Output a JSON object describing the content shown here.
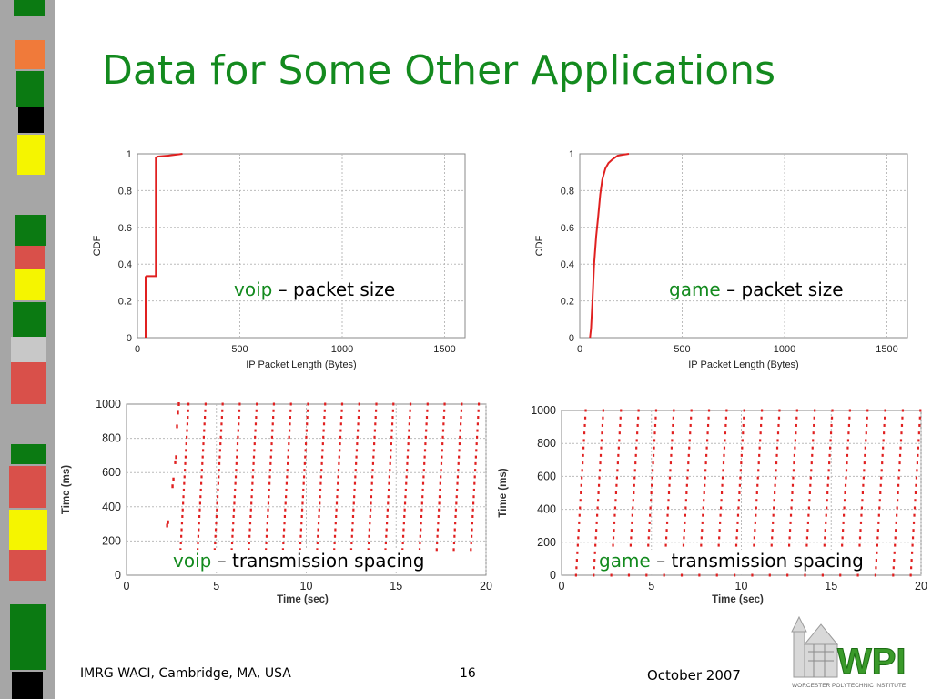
{
  "slide": {
    "title": "Data for Some Other Applications",
    "footer_left": "IMRG WACI, Cambridge, MA, USA",
    "page_number": "16",
    "footer_right": "October 2007",
    "logo_text": "WPI",
    "logo_subtext": "WORCESTER POLYTECHNIC INSTITUTE"
  },
  "captions": [
    {
      "app": "voip",
      "rest": " – packet size"
    },
    {
      "app": "game",
      "rest": " – packet size"
    },
    {
      "app": "voip",
      "rest": " – transmission spacing"
    },
    {
      "app": "game",
      "rest": " – transmission spacing"
    }
  ],
  "colors": {
    "accent": "#138a1e",
    "series": "#e02020"
  },
  "chart_data": [
    {
      "type": "line",
      "xlabel": "IP Packet Length (Bytes)",
      "ylabel": "CDF",
      "xlim": [
        0,
        1600
      ],
      "ylim": [
        0,
        1
      ],
      "xticks": [
        0,
        500,
        1000,
        1500
      ],
      "yticks": [
        0,
        0.2,
        0.4,
        0.6,
        0.8,
        1
      ],
      "grid": true,
      "series": [
        {
          "x": [
            40,
            40,
            44,
            90,
            90,
            100,
            150,
            220
          ],
          "y": [
            0,
            0.33,
            0.335,
            0.335,
            0.98,
            0.985,
            0.99,
            1.0
          ]
        }
      ]
    },
    {
      "type": "line",
      "xlabel": "IP Packet Length (Bytes)",
      "ylabel": "CDF",
      "xlim": [
        0,
        1600
      ],
      "ylim": [
        0,
        1
      ],
      "xticks": [
        0,
        500,
        1000,
        1500
      ],
      "yticks": [
        0,
        0.2,
        0.4,
        0.6,
        0.8,
        1
      ],
      "grid": true,
      "series": [
        {
          "x": [
            50,
            55,
            62,
            70,
            80,
            90,
            100,
            110,
            125,
            140,
            160,
            185,
            210,
            240
          ],
          "y": [
            0,
            0.05,
            0.2,
            0.4,
            0.55,
            0.66,
            0.78,
            0.86,
            0.92,
            0.95,
            0.97,
            0.99,
            0.995,
            1.0
          ]
        }
      ]
    },
    {
      "type": "scatter",
      "xlabel": "Time (sec)",
      "ylabel": "Time (ms)",
      "xlim": [
        0,
        20
      ],
      "ylim": [
        0,
        1000
      ],
      "xticks": [
        0,
        5,
        10,
        15,
        20
      ],
      "yticks": [
        0,
        200,
        400,
        600,
        800,
        1000
      ],
      "grid": true,
      "period_sec": 0.95,
      "sweep_starts_sec": [
        3.0,
        3.95,
        4.9,
        5.85,
        6.8,
        7.75,
        8.7,
        9.65,
        10.6,
        11.55,
        12.5,
        13.45,
        14.4,
        15.35,
        16.3,
        17.25,
        18.2,
        19.15
      ],
      "sweeps_ms": [
        150,
        1000
      ],
      "extra_points": [
        [
          2.25,
          290
        ],
        [
          2.3,
          310
        ],
        [
          2.55,
          520
        ],
        [
          2.6,
          560
        ],
        [
          2.7,
          660
        ],
        [
          2.75,
          690
        ],
        [
          2.8,
          870
        ],
        [
          2.85,
          950
        ],
        [
          2.9,
          1000
        ]
      ]
    },
    {
      "type": "scatter",
      "xlabel": "Time (sec)",
      "ylabel": "Time (ms)",
      "xlim": [
        0,
        20
      ],
      "ylim": [
        0,
        1000
      ],
      "xticks": [
        0,
        5,
        10,
        15,
        20
      ],
      "yticks": [
        0,
        200,
        400,
        600,
        800,
        1000
      ],
      "grid": true,
      "period_sec": 0.98,
      "sweep_starts_sec": [
        0.8,
        1.78,
        2.76,
        3.74,
        4.72,
        5.7,
        6.68,
        7.66,
        8.64,
        9.62,
        10.6,
        11.58,
        12.56,
        13.54,
        14.52,
        15.5,
        16.48,
        17.46,
        18.44,
        19.42
      ],
      "sweeps_ms": [
        0,
        1000
      ],
      "extra_points": []
    }
  ]
}
